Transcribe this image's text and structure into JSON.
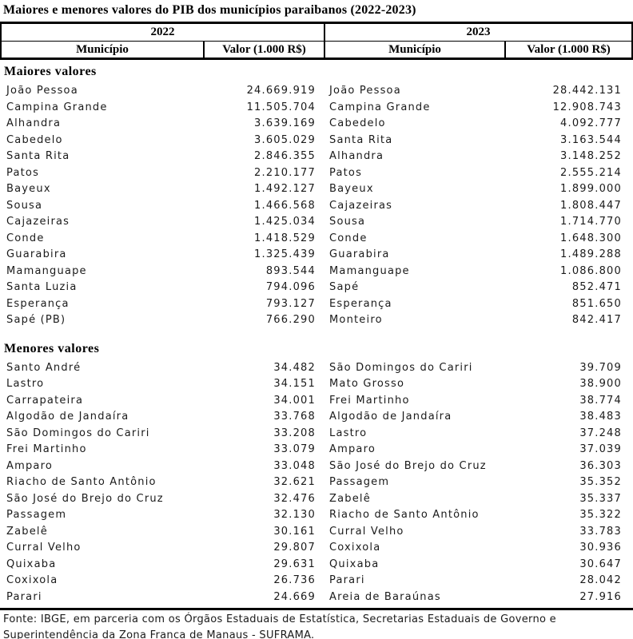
{
  "title": "Maiores e menores valores do PIB dos municípios paraibanos (2022-2023)",
  "chart_data": {
    "type": "table",
    "title": "Maiores e menores valores do PIB dos municípios paraibanos (2022-2023)",
    "year_groups": [
      "2022",
      "2023"
    ],
    "column_headers": [
      "Município",
      "Valor (1.000 R$)",
      "Município",
      "Valor (1.000 R$)"
    ],
    "sections": [
      {
        "label": "Maiores valores",
        "rows": [
          {
            "municipio_2022": "João Pessoa",
            "valor_2022": "24.669.919",
            "municipio_2023": "João Pessoa",
            "valor_2023": "28.442.131"
          },
          {
            "municipio_2022": "Campina Grande",
            "valor_2022": "11.505.704",
            "municipio_2023": "Campina Grande",
            "valor_2023": "12.908.743"
          },
          {
            "municipio_2022": "Alhandra",
            "valor_2022": "3.639.169",
            "municipio_2023": "Cabedelo",
            "valor_2023": "4.092.777"
          },
          {
            "municipio_2022": "Cabedelo",
            "valor_2022": "3.605.029",
            "municipio_2023": "Santa Rita",
            "valor_2023": "3.163.544"
          },
          {
            "municipio_2022": "Santa Rita",
            "valor_2022": "2.846.355",
            "municipio_2023": "Alhandra",
            "valor_2023": "3.148.252"
          },
          {
            "municipio_2022": "Patos",
            "valor_2022": "2.210.177",
            "municipio_2023": "Patos",
            "valor_2023": "2.555.214"
          },
          {
            "municipio_2022": "Bayeux",
            "valor_2022": "1.492.127",
            "municipio_2023": "Bayeux",
            "valor_2023": "1.899.000"
          },
          {
            "municipio_2022": "Sousa",
            "valor_2022": "1.466.568",
            "municipio_2023": "Cajazeiras",
            "valor_2023": "1.808.447"
          },
          {
            "municipio_2022": "Cajazeiras",
            "valor_2022": "1.425.034",
            "municipio_2023": "Sousa",
            "valor_2023": "1.714.770"
          },
          {
            "municipio_2022": "Conde",
            "valor_2022": "1.418.529",
            "municipio_2023": "Conde",
            "valor_2023": "1.648.300"
          },
          {
            "municipio_2022": "Guarabira",
            "valor_2022": "1.325.439",
            "municipio_2023": "Guarabira",
            "valor_2023": "1.489.288"
          },
          {
            "municipio_2022": "Mamanguape",
            "valor_2022": "893.544",
            "municipio_2023": "Mamanguape",
            "valor_2023": "1.086.800"
          },
          {
            "municipio_2022": "Santa Luzia",
            "valor_2022": "794.096",
            "municipio_2023": "Sapé",
            "valor_2023": "852.471"
          },
          {
            "municipio_2022": "Esperança",
            "valor_2022": "793.127",
            "municipio_2023": "Esperança",
            "valor_2023": "851.650"
          },
          {
            "municipio_2022": "Sapé (PB)",
            "valor_2022": "766.290",
            "municipio_2023": "Monteiro",
            "valor_2023": "842.417"
          }
        ]
      },
      {
        "label": "Menores valores",
        "rows": [
          {
            "municipio_2022": "Santo André",
            "valor_2022": "34.482",
            "municipio_2023": "São Domingos do Cariri",
            "valor_2023": "39.709"
          },
          {
            "municipio_2022": "Lastro",
            "valor_2022": "34.151",
            "municipio_2023": "Mato Grosso",
            "valor_2023": "38.900"
          },
          {
            "municipio_2022": "Carrapateira",
            "valor_2022": "34.001",
            "municipio_2023": "Frei Martinho",
            "valor_2023": "38.774"
          },
          {
            "municipio_2022": "Algodão de Jandaíra",
            "valor_2022": "33.768",
            "municipio_2023": "Algodão de Jandaíra",
            "valor_2023": "38.483"
          },
          {
            "municipio_2022": "São Domingos do Cariri",
            "valor_2022": "33.208",
            "municipio_2023": "Lastro",
            "valor_2023": "37.248"
          },
          {
            "municipio_2022": "Frei Martinho",
            "valor_2022": "33.079",
            "municipio_2023": "Amparo",
            "valor_2023": "37.039"
          },
          {
            "municipio_2022": "Amparo",
            "valor_2022": "33.048",
            "municipio_2023": "São José do Brejo do Cruz",
            "valor_2023": "36.303"
          },
          {
            "municipio_2022": "Riacho de Santo Antônio",
            "valor_2022": "32.621",
            "municipio_2023": "Passagem",
            "valor_2023": "35.352"
          },
          {
            "municipio_2022": "São José do Brejo do Cruz",
            "valor_2022": "32.476",
            "municipio_2023": "Zabelê",
            "valor_2023": "35.337"
          },
          {
            "municipio_2022": "Passagem",
            "valor_2022": "32.130",
            "municipio_2023": "Riacho de Santo Antônio",
            "valor_2023": "35.322"
          },
          {
            "municipio_2022": "Zabelê",
            "valor_2022": "30.161",
            "municipio_2023": "Curral Velho",
            "valor_2023": "33.783"
          },
          {
            "municipio_2022": "Curral Velho",
            "valor_2022": "29.807",
            "municipio_2023": "Coxixola",
            "valor_2023": "30.936"
          },
          {
            "municipio_2022": "Quixaba",
            "valor_2022": "29.631",
            "municipio_2023": "Quixaba",
            "valor_2023": "30.647"
          },
          {
            "municipio_2022": "Coxixola",
            "valor_2022": "26.736",
            "municipio_2023": "Parari",
            "valor_2023": "28.042"
          },
          {
            "municipio_2022": "Parari",
            "valor_2022": "24.669",
            "municipio_2023": "Areia de Baraúnas",
            "valor_2023": "27.916"
          }
        ]
      }
    ]
  },
  "footer": "Fonte: IBGE, em parceria com os Órgãos Estaduais de Estatística, Secretarias Estaduais de Governo e Superintendência da Zona Franca de Manaus - SUFRAMA."
}
